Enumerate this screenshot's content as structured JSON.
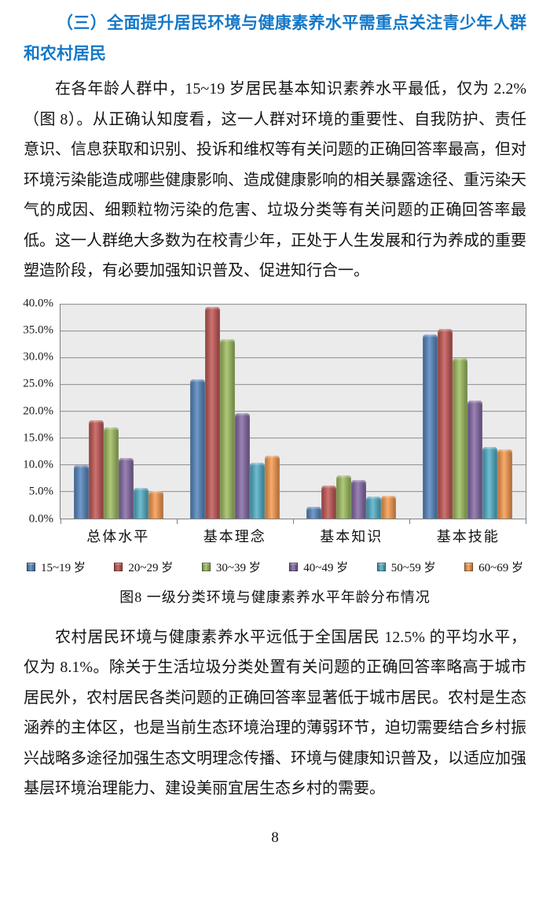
{
  "page": {
    "heading": "（三）全面提升居民环境与健康素养水平需重点关注青少年人群和农村居民",
    "heading_color": "#1478C8",
    "paragraph1": "在各年龄人群中，15~19 岁居民基本知识素养水平最低，仅为 2.2%（图 8）。从正确认知度看，这一人群对环境的重要性、自我防护、责任意识、信息获取和识别、投诉和维权等有关问题的正确回答率最高，但对环境污染能造成哪些健康影响、造成健康影响的相关暴露途径、重污染天气的成因、细颗粒物污染的危害、垃圾分类等有关问题的正确回答率最低。这一人群绝大多数为在校青少年，正处于人生发展和行为养成的重要塑造阶段，有必要加强知识普及、促进知行合一。",
    "paragraph2": "农村居民环境与健康素养水平远低于全国居民 12.5% 的平均水平，仅为 8.1%。除关于生活垃圾分类处置有关问题的正确回答率略高于城市居民外，农村居民各类问题的正确回答率显著低于城市居民。农村是生态涵养的主体区，也是当前生态环境治理的薄弱环节，迫切需要结合乡村振兴战略多途径加强生态文明理念传播、环境与健康知识普及，以适应加强基层环境治理能力、建设美丽宜居生态乡村的需要。",
    "page_number": "8"
  },
  "chart_data": {
    "type": "bar",
    "title": "图8  一级分类环境与健康素养水平年龄分布情况",
    "categories": [
      "总体水平",
      "基本理念",
      "基本知识",
      "基本技能"
    ],
    "series": [
      {
        "name": "15~19 岁",
        "color": "#4F81BD",
        "values": [
          10.0,
          26.0,
          2.2,
          34.3
        ]
      },
      {
        "name": "20~29 岁",
        "color": "#C0504D",
        "values": [
          18.3,
          39.5,
          6.1,
          35.3
        ]
      },
      {
        "name": "30~39 岁",
        "color": "#9BBB59",
        "values": [
          17.0,
          33.4,
          8.0,
          30.0
        ]
      },
      {
        "name": "40~49 岁",
        "color": "#8064A2",
        "values": [
          11.2,
          19.6,
          7.1,
          22.0
        ]
      },
      {
        "name": "50~59 岁",
        "color": "#4BACC6",
        "values": [
          5.6,
          10.4,
          4.0,
          13.3
        ]
      },
      {
        "name": "60~69 岁",
        "color": "#F79646",
        "values": [
          5.1,
          11.7,
          4.2,
          12.8
        ]
      }
    ],
    "xlabel": "",
    "ylabel": "",
    "ylim": [
      0,
      40
    ],
    "ytick_step": 5,
    "ytick_suffix": "%",
    "grid": true,
    "legend_position": "bottom",
    "plot_background": "#EBEBEC",
    "gridline_color": "#9A9A9A"
  }
}
